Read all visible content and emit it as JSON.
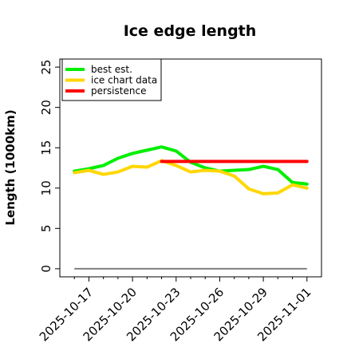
{
  "chart_data": {
    "type": "line",
    "title": "Ice edge length",
    "ylabel": "Length (1000km)",
    "xlabel": "",
    "xlim": [
      "2025-10-15",
      "2025-11-02"
    ],
    "ylim": [
      -1,
      26
    ],
    "yticks": [
      0,
      5,
      10,
      15,
      20,
      25
    ],
    "xticks": [
      "2025-10-17",
      "2025-10-20",
      "2025-10-23",
      "2025-10-26",
      "2025-10-29",
      "2025-11-01"
    ],
    "grid": false,
    "legend_position": "top-left",
    "series": [
      {
        "name": "best est.",
        "color": "#00ee00",
        "x": [
          "2025-10-16",
          "2025-10-17",
          "2025-10-18",
          "2025-10-19",
          "2025-10-20",
          "2025-10-21",
          "2025-10-22",
          "2025-10-23",
          "2025-10-24",
          "2025-10-25",
          "2025-10-26",
          "2025-10-27",
          "2025-10-28",
          "2025-10-29",
          "2025-10-30",
          "2025-10-31",
          "2025-11-01"
        ],
        "y": [
          12.1,
          12.4,
          12.8,
          13.7,
          14.3,
          14.7,
          15.1,
          14.6,
          13.2,
          12.5,
          12.1,
          12.2,
          12.3,
          12.7,
          12.3,
          10.7,
          10.5
        ]
      },
      {
        "name": "ice chart data",
        "color": "#ffd700",
        "x": [
          "2025-10-16",
          "2025-10-17",
          "2025-10-18",
          "2025-10-19",
          "2025-10-20",
          "2025-10-21",
          "2025-10-22",
          "2025-10-23",
          "2025-10-24",
          "2025-10-25",
          "2025-10-26",
          "2025-10-27",
          "2025-10-28",
          "2025-10-29",
          "2025-10-30",
          "2025-10-31",
          "2025-11-01"
        ],
        "y": [
          11.9,
          12.2,
          11.7,
          12.0,
          12.7,
          12.6,
          13.4,
          12.8,
          12.0,
          12.2,
          12.1,
          11.5,
          9.9,
          9.3,
          9.4,
          10.4,
          10.0
        ]
      },
      {
        "name": "persistence",
        "color": "#ff0000",
        "x": [
          "2025-10-22",
          "2025-11-01"
        ],
        "y": [
          13.3,
          13.3
        ]
      }
    ],
    "reference_line": {
      "color": "#808080",
      "x": [
        "2025-10-16",
        "2025-11-01"
      ],
      "y": [
        0,
        0
      ]
    }
  }
}
